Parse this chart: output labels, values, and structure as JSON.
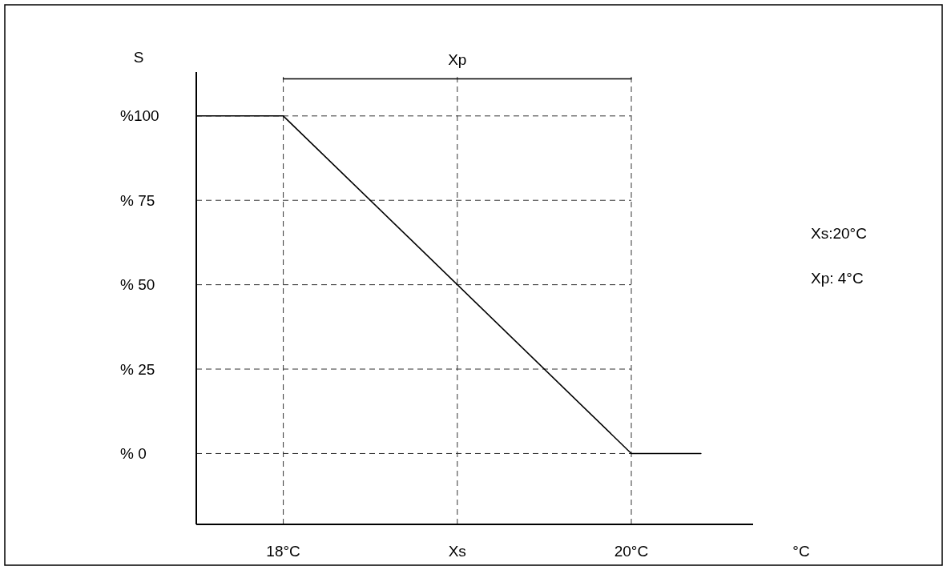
{
  "chart_data": {
    "type": "line",
    "xlabel": "°C",
    "ylabel": "S",
    "x": [
      17.5,
      18,
      20,
      20.4
    ],
    "series": [
      {
        "color": "#000000",
        "values": [
          100,
          100,
          0,
          0
        ]
      },
      {
        "name": "Xp",
        "color": "#000000",
        "x": [
          18,
          20
        ],
        "values": [
          111,
          111
        ]
      }
    ],
    "xlim": [
      17.5,
      20.7
    ],
    "ylim": [
      -21,
      113
    ],
    "xticks": [
      {
        "value": 18,
        "label": "18°C"
      },
      {
        "value": 19,
        "label": "Xs"
      },
      {
        "value": 20,
        "label": "20°C"
      }
    ],
    "yticks": [
      {
        "value": 0,
        "label": "% 0"
      },
      {
        "value": 25,
        "label": "% 25"
      },
      {
        "value": 50,
        "label": "% 50"
      },
      {
        "value": 75,
        "label": "% 75"
      },
      {
        "value": 100,
        "label": "%100"
      }
    ],
    "grid": true,
    "line_style": "solid",
    "marker": "none",
    "annotations": [
      "Xs:20°C",
      "Xp: 4°C"
    ]
  }
}
